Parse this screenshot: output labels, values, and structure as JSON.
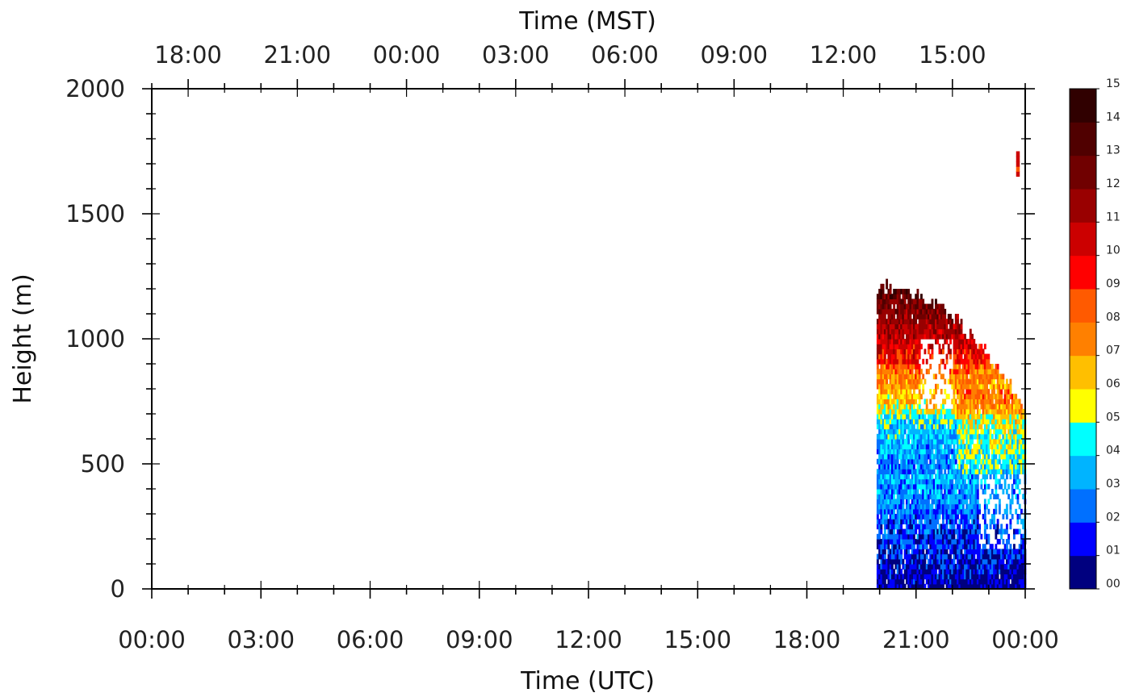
{
  "chart_data": {
    "type": "heatmap",
    "title": "",
    "xlabel_bottom": "Time (UTC)",
    "xlabel_top": "Time (MST)",
    "ylabel": "Height (m)",
    "x_range_hours_utc": [
      0,
      24
    ],
    "x_ticks_bottom": [
      "00:00",
      "03:00",
      "06:00",
      "09:00",
      "12:00",
      "15:00",
      "18:00",
      "21:00",
      "00:00"
    ],
    "x_ticks_top": [
      "18:00",
      "21:00",
      "00:00",
      "03:00",
      "06:00",
      "09:00",
      "12:00",
      "15:00"
    ],
    "ylim": [
      0,
      2000
    ],
    "y_ticks": [
      "0",
      "500",
      "1000",
      "1500",
      "2000"
    ],
    "colorbar": {
      "labels": [
        "00",
        "01",
        "02",
        "03",
        "04",
        "05",
        "06",
        "07",
        "08",
        "09",
        "10",
        "11",
        "12",
        "13",
        "14",
        "15"
      ],
      "colors": [
        "#00007f",
        "#0000ff",
        "#0070ff",
        "#00b4ff",
        "#00ffff",
        "#ffff00",
        "#ffbf00",
        "#ff8000",
        "#ff5a00",
        "#ff0000",
        "#cc0000",
        "#990000",
        "#700000",
        "#500000",
        "#300000"
      ]
    },
    "data_region": {
      "time_start_utc": "19:55",
      "time_end_utc": "24:00",
      "height_top_m": 1200,
      "isolated_patch": {
        "time_utc": "23:45",
        "height_m": [
          1650,
          1750
        ],
        "value": 10
      }
    },
    "profile_bands": [
      {
        "height_m": [
          0,
          150
        ],
        "value_range": [
          0,
          1
        ]
      },
      {
        "height_m": [
          150,
          450
        ],
        "value_range": [
          1,
          3
        ]
      },
      {
        "height_m": [
          450,
          700
        ],
        "value_range": [
          2,
          4
        ]
      },
      {
        "height_m": [
          700,
          900
        ],
        "value_range": [
          5,
          8
        ]
      },
      {
        "height_m": [
          900,
          1200
        ],
        "value_range": [
          9,
          13
        ]
      }
    ]
  }
}
